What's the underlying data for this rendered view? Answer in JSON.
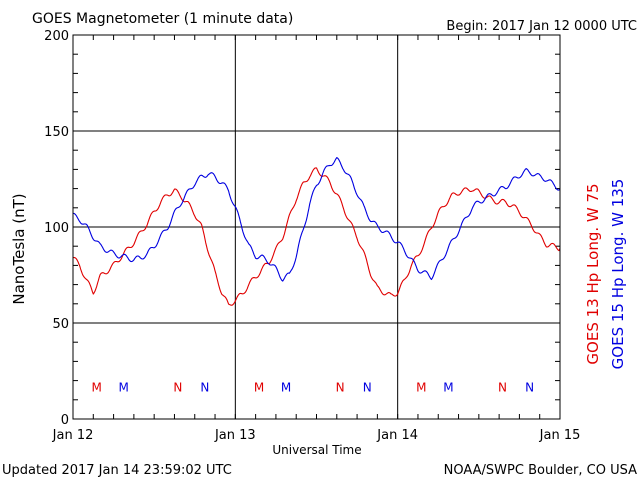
{
  "header": {
    "title": "GOES Magnetometer (1 minute data)",
    "begin": "Begin:  2017 Jan 12 0000 UTC"
  },
  "footer": {
    "updated": "Updated 2017 Jan 14 23:59:02 UTC",
    "source": "NOAA/SWPC Boulder, CO USA"
  },
  "colors": {
    "goes13": "#e00000",
    "goes15": "#0000e0",
    "axis": "#000000"
  },
  "chart_data": {
    "type": "line",
    "title": "GOES Magnetometer (1 minute data)",
    "xlabel": "Universal Time",
    "ylabel": "NanoTesla (nT)",
    "ylim": [
      0,
      200
    ],
    "yticks": [
      0,
      50,
      100,
      150,
      200
    ],
    "xlim": [
      0,
      72
    ],
    "x_units": "hours since 2017 Jan 12 0000 UTC",
    "xtick_labels": [
      {
        "x": 0,
        "label": "Jan 12"
      },
      {
        "x": 24,
        "label": "Jan 13"
      },
      {
        "x": 48,
        "label": "Jan 14"
      },
      {
        "x": 72,
        "label": "Jan 15"
      }
    ],
    "grid": true,
    "series": [
      {
        "name": "GOES 13 Hp  Long. W 75",
        "color": "#e00000",
        "x": [
          0,
          1,
          2,
          3,
          4,
          5,
          6,
          7,
          8,
          9,
          10,
          11,
          12,
          13,
          14,
          15,
          16,
          17,
          18,
          19,
          20,
          21,
          22,
          23,
          24,
          25,
          26,
          27,
          28,
          29,
          30,
          31,
          32,
          33,
          34,
          35,
          36,
          37,
          38,
          39,
          40,
          41,
          42,
          43,
          44,
          45,
          46,
          47,
          48,
          49,
          50,
          51,
          52,
          53,
          54,
          55,
          56,
          57,
          58,
          59,
          60,
          61,
          62,
          63,
          64,
          65,
          66,
          67,
          68,
          69,
          70,
          71,
          72
        ],
        "values": [
          84,
          80,
          72,
          66,
          74,
          77,
          80,
          84,
          88,
          92,
          97,
          102,
          108,
          113,
          117,
          119,
          116,
          112,
          107,
          100,
          88,
          76,
          66,
          59,
          62,
          65,
          70,
          74,
          78,
          82,
          88,
          95,
          105,
          115,
          122,
          127,
          130,
          127,
          123,
          117,
          110,
          102,
          95,
          86,
          76,
          68,
          66,
          64,
          66,
          72,
          80,
          85,
          92,
          100,
          107,
          112,
          116,
          118,
          119,
          120,
          118,
          116,
          114,
          113,
          113,
          111,
          108,
          104,
          100,
          95,
          91,
          90,
          89
        ]
      },
      {
        "name": "GOES 15 Hp  Long. W 135",
        "color": "#0000e0",
        "x": [
          0,
          1,
          2,
          3,
          4,
          5,
          6,
          7,
          8,
          9,
          10,
          11,
          12,
          13,
          14,
          15,
          16,
          17,
          18,
          19,
          20,
          21,
          22,
          23,
          24,
          25,
          26,
          27,
          28,
          29,
          30,
          31,
          32,
          33,
          34,
          35,
          36,
          37,
          38,
          39,
          40,
          41,
          42,
          43,
          44,
          45,
          46,
          47,
          48,
          49,
          50,
          51,
          52,
          53,
          54,
          55,
          56,
          57,
          58,
          59,
          60,
          61,
          62,
          63,
          64,
          65,
          66,
          67,
          68,
          69,
          70,
          71,
          72
        ],
        "values": [
          106,
          104,
          100,
          95,
          90,
          88,
          86,
          85,
          84,
          83,
          84,
          86,
          90,
          95,
          100,
          107,
          113,
          118,
          123,
          126,
          128,
          126,
          123,
          119,
          110,
          100,
          90,
          85,
          84,
          82,
          78,
          73,
          75,
          85,
          98,
          112,
          122,
          128,
          133,
          135,
          131,
          125,
          118,
          110,
          104,
          100,
          98,
          95,
          92,
          88,
          83,
          78,
          76,
          74,
          80,
          86,
          92,
          98,
          104,
          110,
          113,
          115,
          117,
          119,
          121,
          124,
          127,
          129,
          128,
          126,
          125,
          122,
          120
        ]
      }
    ],
    "markers": {
      "goes13": [
        {
          "x": 3.5,
          "label": "M"
        },
        {
          "x": 15.5,
          "label": "N"
        },
        {
          "x": 27.5,
          "label": "M"
        },
        {
          "x": 39.5,
          "label": "N"
        },
        {
          "x": 51.5,
          "label": "M"
        },
        {
          "x": 63.5,
          "label": "N"
        }
      ],
      "goes15": [
        {
          "x": 7.5,
          "label": "M"
        },
        {
          "x": 19.5,
          "label": "N"
        },
        {
          "x": 31.5,
          "label": "M"
        },
        {
          "x": 43.5,
          "label": "N"
        },
        {
          "x": 55.5,
          "label": "M"
        },
        {
          "x": 67.5,
          "label": "N"
        }
      ],
      "value": 17
    },
    "right_labels": [
      "GOES 13 Hp  Long. W 75",
      "GOES 15 Hp  Long. W 135"
    ]
  }
}
